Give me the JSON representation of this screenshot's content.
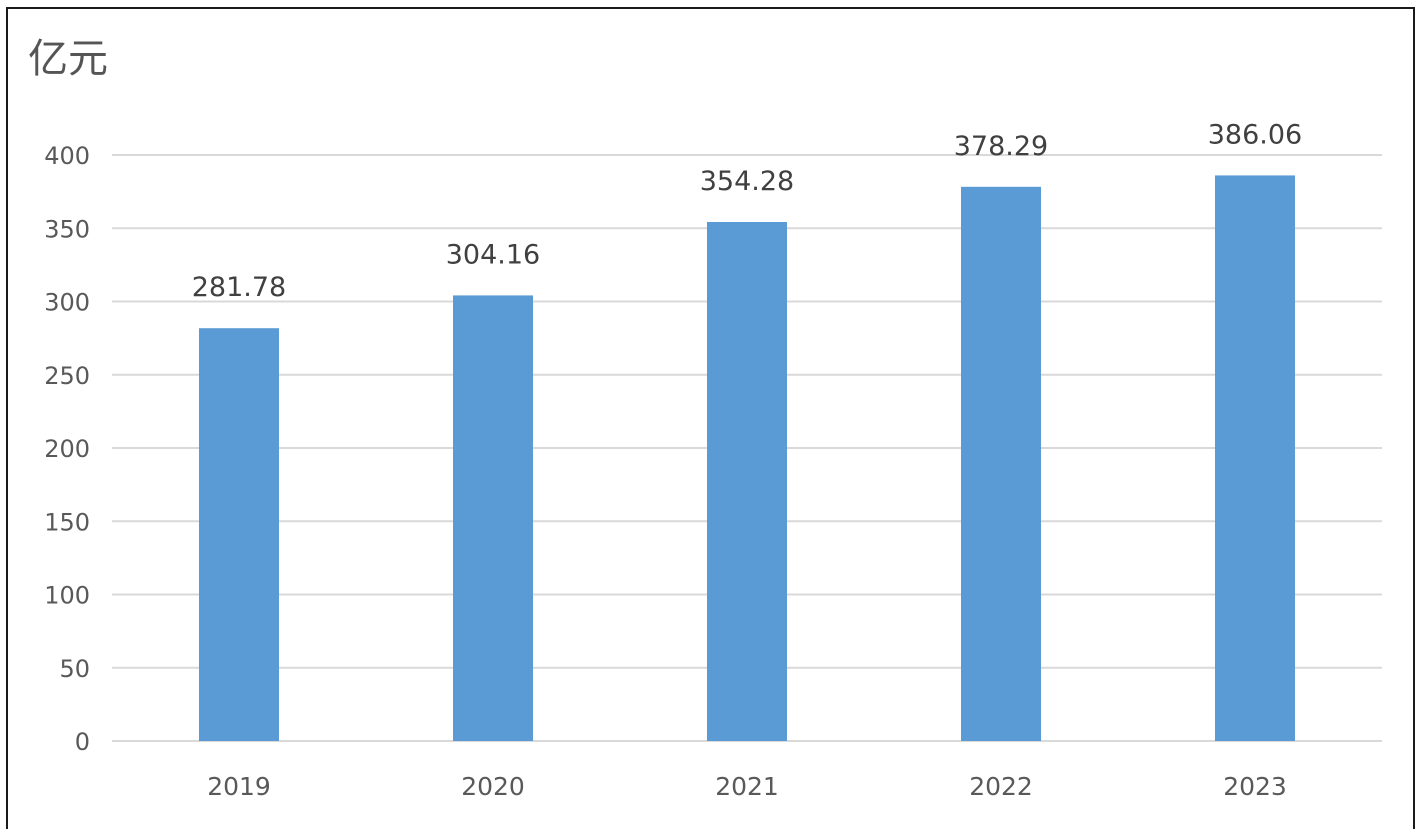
{
  "chart_data": {
    "type": "bar",
    "unit_label": "亿元",
    "categories": [
      "2019",
      "2020",
      "2021",
      "2022",
      "2023"
    ],
    "values": [
      281.78,
      304.16,
      354.28,
      378.29,
      386.06
    ],
    "value_labels": [
      "281.78",
      "304.16",
      "354.28",
      "378.29",
      "386.06"
    ],
    "ylim": [
      0,
      400
    ],
    "yticks": [
      0,
      50,
      100,
      150,
      200,
      250,
      300,
      350,
      400
    ],
    "title": "",
    "xlabel": "",
    "ylabel": "",
    "grid": true,
    "legend": "none",
    "bar_color": "#5B9BD5",
    "grid_color": "#D9D9D9"
  }
}
